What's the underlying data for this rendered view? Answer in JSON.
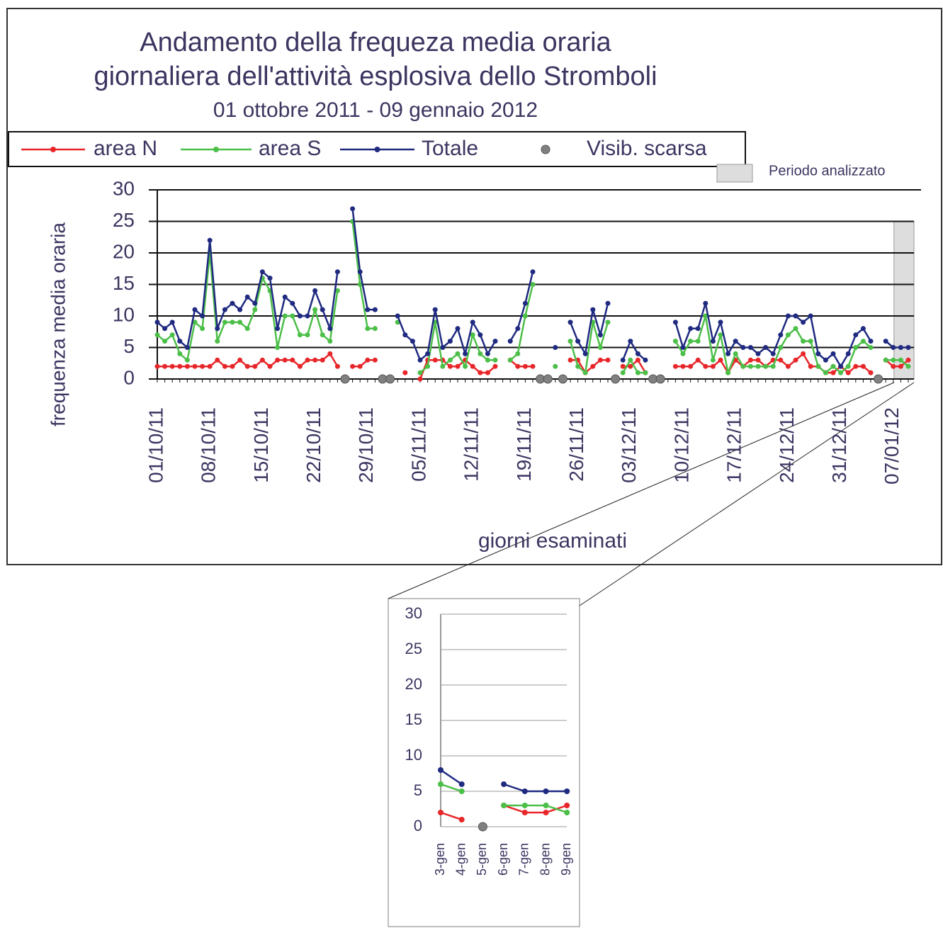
{
  "chart_data": [
    {
      "type": "line",
      "title": [
        "Andamento della frequeza media oraria",
        "giornaliera dell'attività esplosiva dello Stromboli"
      ],
      "subtitle": "01 ottobre 2011 - 09  gennaio 2012",
      "x_label": "giorni esaminati",
      "y_label": "frequenza media oraria",
      "categories": [
        "01/10/11",
        null,
        null,
        null,
        null,
        null,
        null,
        "08/10/11",
        null,
        null,
        null,
        null,
        null,
        null,
        "15/10/11",
        null,
        null,
        null,
        null,
        null,
        null,
        "22/10/11",
        null,
        null,
        null,
        null,
        null,
        null,
        "29/10/11",
        null,
        null,
        null,
        null,
        null,
        null,
        "05/11/11",
        null,
        null,
        null,
        null,
        null,
        null,
        "12/11/11",
        null,
        null,
        null,
        null,
        null,
        null,
        "19/11/11",
        null,
        null,
        null,
        null,
        null,
        null,
        "26/11/11",
        null,
        null,
        null,
        null,
        null,
        null,
        "03/12/11",
        null,
        null,
        null,
        null,
        null,
        null,
        "10/12/11",
        null,
        null,
        null,
        null,
        null,
        null,
        "17/12/11",
        null,
        null,
        null,
        null,
        null,
        null,
        "24/12/11",
        null,
        null,
        null,
        null,
        null,
        null,
        "31/12/11",
        null,
        null,
        null,
        null,
        null,
        null,
        "07/01/12",
        null,
        null
      ],
      "series": [
        {
          "name": "area N",
          "color": "#e8262a",
          "values": [
            2,
            2,
            2,
            2,
            2,
            2,
            2,
            2,
            3,
            2,
            2,
            3,
            2,
            2,
            3,
            2,
            3,
            3,
            3,
            2,
            3,
            3,
            3,
            4,
            2,
            null,
            2,
            2,
            3,
            3,
            null,
            null,
            null,
            1,
            null,
            0,
            3,
            3,
            3,
            2,
            2,
            3,
            2,
            1,
            1,
            2,
            null,
            3,
            2,
            2,
            2,
            null,
            null,
            null,
            null,
            3,
            3,
            1,
            2,
            3,
            3,
            null,
            2,
            2,
            3,
            1,
            null,
            null,
            null,
            2,
            2,
            2,
            3,
            2,
            2,
            3,
            1,
            3,
            2,
            3,
            3,
            2,
            3,
            3,
            2,
            3,
            4,
            2,
            2,
            1,
            1,
            2,
            1,
            2,
            2,
            1,
            null,
            3,
            2,
            2,
            3
          ]
        },
        {
          "name": "area S",
          "color": "#4cbf48",
          "values": [
            7,
            6,
            7,
            4,
            3,
            9,
            8,
            20,
            6,
            9,
            9,
            9,
            8,
            11,
            16,
            14,
            5,
            10,
            10,
            7,
            7,
            11,
            7,
            6,
            14,
            null,
            25,
            15,
            8,
            8,
            null,
            null,
            9,
            null,
            null,
            1,
            2,
            9,
            2,
            3,
            4,
            2,
            7,
            4,
            3,
            3,
            null,
            3,
            4,
            10,
            15,
            null,
            null,
            2,
            null,
            6,
            2,
            1,
            9,
            5,
            9,
            null,
            1,
            3,
            1,
            1,
            null,
            null,
            null,
            6,
            4,
            6,
            6,
            10,
            3,
            7,
            1,
            4,
            2,
            2,
            2,
            2,
            2,
            5,
            7,
            8,
            6,
            6,
            2,
            1,
            2,
            1,
            2,
            5,
            6,
            5,
            null,
            3,
            3,
            3,
            2
          ]
        },
        {
          "name": "Totale",
          "color": "#1f2a80",
          "values": [
            9,
            8,
            9,
            6,
            5,
            11,
            10,
            22,
            8,
            11,
            12,
            11,
            13,
            12,
            17,
            16,
            8,
            13,
            12,
            10,
            10,
            14,
            11,
            8,
            17,
            null,
            27,
            17,
            11,
            11,
            null,
            null,
            10,
            7,
            6,
            3,
            4,
            11,
            5,
            6,
            8,
            4,
            9,
            7,
            4,
            6,
            null,
            6,
            8,
            12,
            17,
            null,
            null,
            5,
            null,
            9,
            6,
            4,
            11,
            7,
            12,
            null,
            3,
            6,
            4,
            3,
            null,
            null,
            null,
            9,
            5,
            8,
            8,
            12,
            6,
            9,
            4,
            6,
            5,
            5,
            4,
            5,
            4,
            7,
            10,
            10,
            9,
            10,
            4,
            3,
            4,
            2,
            4,
            7,
            8,
            6,
            null,
            6,
            5,
            5,
            5
          ]
        },
        {
          "name": "Visib. scarsa",
          "color": "#808080",
          "line": false,
          "values": [
            null,
            null,
            null,
            null,
            null,
            null,
            null,
            null,
            null,
            null,
            null,
            null,
            null,
            null,
            null,
            null,
            null,
            null,
            null,
            null,
            null,
            null,
            null,
            null,
            null,
            0,
            null,
            null,
            null,
            null,
            0,
            0,
            null,
            null,
            null,
            null,
            null,
            null,
            null,
            null,
            null,
            null,
            null,
            null,
            null,
            null,
            null,
            null,
            null,
            null,
            null,
            0,
            0,
            null,
            0,
            null,
            null,
            null,
            null,
            null,
            null,
            0,
            null,
            null,
            null,
            null,
            0,
            0,
            null,
            null,
            null,
            null,
            null,
            null,
            null,
            null,
            null,
            null,
            null,
            null,
            null,
            null,
            null,
            null,
            null,
            null,
            null,
            null,
            null,
            null,
            null,
            null,
            null,
            null,
            null,
            null,
            0,
            null,
            null,
            null,
            null
          ]
        }
      ],
      "ylim": [
        0,
        30
      ],
      "yticks": [
        0,
        5,
        10,
        15,
        20,
        25,
        30
      ],
      "grid": true,
      "legend": "top",
      "highlight": {
        "label": "Periodo analizzato",
        "y": 25
      }
    },
    {
      "type": "line",
      "categories": [
        "3-gen",
        "4-gen",
        "5-gen",
        "6-gen",
        "7-gen",
        "8-gen",
        "9-gen"
      ],
      "series": [
        {
          "color": "#e8262a",
          "values": [
            2,
            1,
            null,
            3,
            2,
            2,
            3
          ]
        },
        {
          "color": "#4cbf48",
          "values": [
            6,
            5,
            null,
            3,
            3,
            3,
            2
          ]
        },
        {
          "color": "#1f2a80",
          "values": [
            8,
            6,
            null,
            6,
            5,
            5,
            5
          ]
        },
        {
          "color": "#808080",
          "line": false,
          "values": [
            null,
            null,
            0,
            null,
            null,
            null,
            null
          ]
        }
      ],
      "ylim": [
        0,
        30
      ],
      "yticks": [
        0,
        5,
        10,
        15,
        20,
        25,
        30
      ],
      "grid": true
    }
  ]
}
